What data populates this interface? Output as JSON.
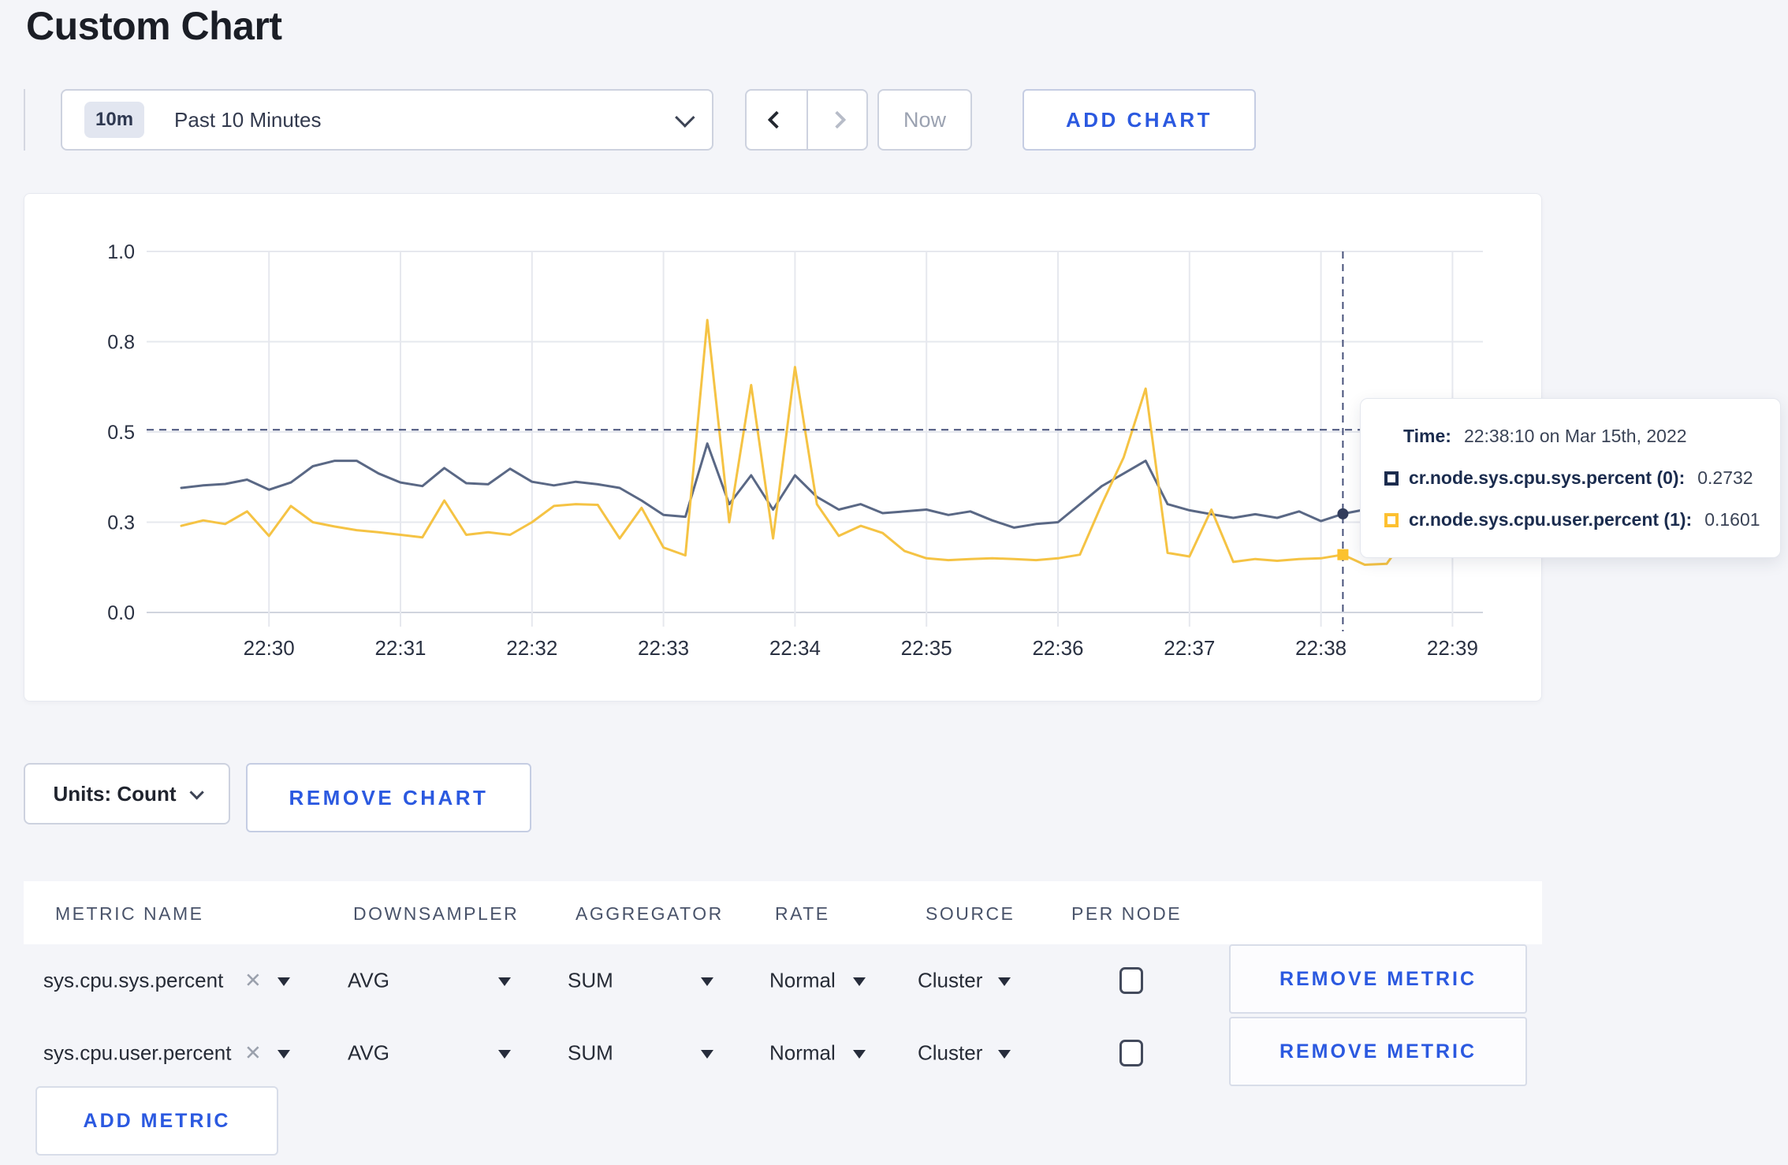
{
  "page_title": "Custom Chart",
  "accent_color": "#2b59e0",
  "toolbar": {
    "range_badge": "10m",
    "range_label": "Past 10 Minutes",
    "now_label": "Now",
    "add_chart_label": "ADD CHART"
  },
  "chart_data": {
    "type": "line",
    "title": "",
    "x_start_label": "22:29:20",
    "x_step_seconds": 10,
    "x_tick_labels": [
      "22:30",
      "22:31",
      "22:32",
      "22:33",
      "22:34",
      "22:35",
      "22:36",
      "22:37",
      "22:38",
      "22:39"
    ],
    "x_tick_offsets_sec": [
      40,
      100,
      160,
      220,
      280,
      340,
      400,
      460,
      520,
      580
    ],
    "ylim": [
      0,
      1
    ],
    "y_tick_values": [
      0,
      0.25,
      0.5,
      0.75,
      1.0
    ],
    "y_tick_labels": [
      "0.0",
      "0.3",
      "0.5",
      "0.8",
      "1.0"
    ],
    "grid": true,
    "legend_position": "tooltip-only",
    "grid_color": "#e6e8ee",
    "axis_line_color": "#d0d4de",
    "crosshair": {
      "x_offset_sec": 530,
      "y_value": 0.506,
      "color": "#46517a"
    },
    "series": [
      {
        "name": "cr.node.sys.cpu.sys.percent (0)",
        "color": "#5a6885",
        "marker": "circle",
        "marker_color": "#323d5c",
        "values": [
          0.345,
          0.352,
          0.356,
          0.368,
          0.34,
          0.36,
          0.405,
          0.42,
          0.42,
          0.385,
          0.36,
          0.35,
          0.4,
          0.358,
          0.355,
          0.398,
          0.362,
          0.352,
          0.362,
          0.355,
          0.345,
          0.31,
          0.27,
          0.265,
          0.468,
          0.3,
          0.38,
          0.285,
          0.38,
          0.32,
          0.285,
          0.3,
          0.275,
          0.28,
          0.285,
          0.27,
          0.28,
          0.255,
          0.235,
          0.245,
          0.25,
          0.3,
          0.35,
          0.385,
          0.42,
          0.3,
          0.283,
          0.272,
          0.262,
          0.272,
          0.262,
          0.28,
          0.253,
          0.2732,
          0.285,
          0.3,
          0.295,
          0.3,
          0.295,
          0.3
        ]
      },
      {
        "name": "cr.node.sys.cpu.user.percent (1)",
        "color": "#f5c344",
        "marker": "square",
        "marker_color": "#fcc22e",
        "values": [
          0.24,
          0.255,
          0.245,
          0.28,
          0.212,
          0.295,
          0.25,
          0.238,
          0.228,
          0.222,
          0.215,
          0.208,
          0.31,
          0.215,
          0.222,
          0.215,
          0.25,
          0.295,
          0.3,
          0.298,
          0.205,
          0.29,
          0.18,
          0.158,
          0.81,
          0.25,
          0.63,
          0.205,
          0.68,
          0.3,
          0.212,
          0.24,
          0.22,
          0.17,
          0.15,
          0.145,
          0.148,
          0.15,
          0.148,
          0.145,
          0.15,
          0.16,
          0.3,
          0.43,
          0.62,
          0.165,
          0.155,
          0.285,
          0.14,
          0.148,
          0.143,
          0.148,
          0.15,
          0.1601,
          0.132,
          0.135,
          0.22,
          0.295,
          0.275,
          0.255
        ]
      }
    ]
  },
  "tooltip": {
    "time_label": "Time:",
    "time_value": "22:38:10 on Mar 15th, 2022",
    "series": [
      {
        "label": "cr.node.sys.cpu.sys.percent (0):",
        "value": "0.2732",
        "swatch_color": "#1b2c4e"
      },
      {
        "label": "cr.node.sys.cpu.user.percent (1):",
        "value": "0.1601",
        "swatch_color": "#fdc030"
      }
    ]
  },
  "chart_footer": {
    "units_label": "Units: Count",
    "remove_chart_label": "REMOVE CHART"
  },
  "table": {
    "headers": [
      "METRIC NAME",
      "DOWNSAMPLER",
      "AGGREGATOR",
      "RATE",
      "SOURCE",
      "PER NODE"
    ],
    "rows": [
      {
        "metric": "sys.cpu.sys.percent",
        "downsampler": "AVG",
        "aggregator": "SUM",
        "rate": "Normal",
        "source": "Cluster",
        "per_node_checked": false,
        "remove_label": "REMOVE METRIC"
      },
      {
        "metric": "sys.cpu.user.percent",
        "downsampler": "AVG",
        "aggregator": "SUM",
        "rate": "Normal",
        "source": "Cluster",
        "per_node_checked": false,
        "remove_label": "REMOVE METRIC"
      }
    ],
    "add_metric_label": "ADD METRIC"
  }
}
